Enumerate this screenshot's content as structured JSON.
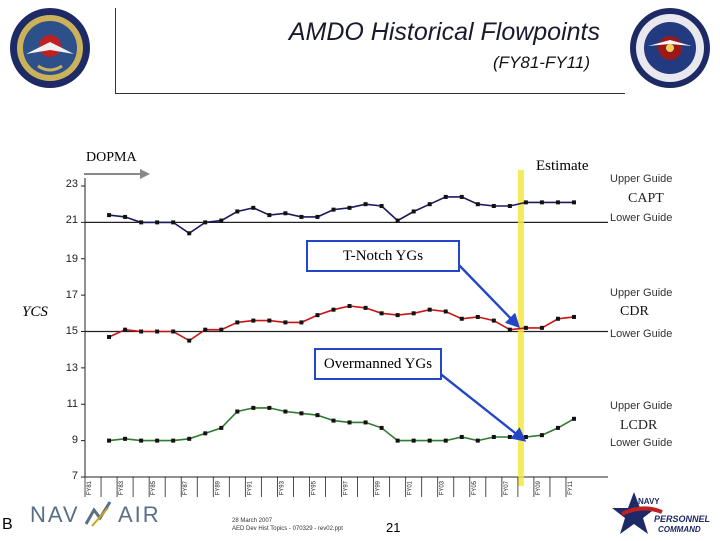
{
  "header": {
    "title": "AMDO Historical Flowpoints",
    "subtitle": "(FY81-FY11)",
    "left_seal_icon": "navy-aviation-seal-icon",
    "right_seal_icon": "aviation-maintenance-duty-seal-icon"
  },
  "annotations": {
    "dopma": "DOPMA",
    "estimate": "Estimate",
    "yaxis_label": "YCS",
    "tnotch": "T-Notch YGs",
    "overmanned": "Overmanned YGs"
  },
  "bands": [
    {
      "upper": "Upper Guide",
      "rank": "CAPT",
      "lower": "Lower Guide"
    },
    {
      "upper": "Upper Guide",
      "rank": "CDR",
      "lower": "Lower Guide"
    },
    {
      "upper": "Upper Guide",
      "rank": "LCDR",
      "lower": "Lower Guide"
    }
  ],
  "footer": {
    "letter": "B",
    "navair_logo": "NAVAIR",
    "date": "28 March 2007",
    "file": "AED Dev Hist Topics - 070329 - rev02.ppt",
    "page": "21",
    "command_logo": "NAVY PERSONNEL COMMAND"
  },
  "colors": {
    "capt": "#1a1a60",
    "cdr": "#c81414",
    "lcdr": "#2f7a2f",
    "estimate_line": "#f5e642",
    "arrow": "#2346c8",
    "guide_line": "#222222"
  },
  "chart_data": {
    "type": "line",
    "title": "AMDO Historical Flowpoints",
    "ylabel": "YCS",
    "ylim": [
      7,
      23
    ],
    "yticks": [
      7,
      9,
      11,
      13,
      15,
      17,
      19,
      21,
      23
    ],
    "guide_lines": [
      21,
      15
    ],
    "categories": [
      "FY81",
      "FY82",
      "FY83",
      "FY84",
      "FY85",
      "FY86",
      "FY87",
      "FY88",
      "FY89",
      "FY90",
      "FY91",
      "FY92",
      "FY93",
      "FY94",
      "FY95",
      "FY96",
      "FY97",
      "FY98",
      "FY99",
      "FY00",
      "FY01",
      "FY02",
      "FY03",
      "FY04",
      "FY05",
      "FY06",
      "FY07",
      "FY08",
      "FY09",
      "FY10",
      "FY11"
    ],
    "x_tick_labels": [
      "FY81",
      "FY83",
      "FY85",
      "FY87",
      "FY89",
      "FY91",
      "FY93",
      "FY95",
      "FY97",
      "FY99",
      "FY01",
      "FY03",
      "FY05",
      "FY07",
      "FY09",
      "FY11"
    ],
    "estimate_at": "FY07",
    "series": [
      {
        "name": "CAPT",
        "values": [
          null,
          21.4,
          21.3,
          21.0,
          21.0,
          21.0,
          20.4,
          21.0,
          21.1,
          21.6,
          21.8,
          21.4,
          21.5,
          21.3,
          21.3,
          21.7,
          21.8,
          22.0,
          21.9,
          21.1,
          21.6,
          22.0,
          22.4,
          22.4,
          22.0,
          21.9,
          21.9,
          22.1,
          22.1,
          22.1,
          22.1
        ]
      },
      {
        "name": "CDR",
        "values": [
          null,
          14.7,
          15.1,
          15.0,
          15.0,
          15.0,
          14.5,
          15.1,
          15.1,
          15.5,
          15.6,
          15.6,
          15.5,
          15.5,
          15.9,
          16.2,
          16.4,
          16.3,
          16.0,
          15.9,
          16.0,
          16.2,
          16.1,
          15.7,
          15.8,
          15.6,
          15.1,
          15.2,
          15.2,
          15.7,
          15.8
        ]
      },
      {
        "name": "LCDR",
        "values": [
          null,
          9.0,
          9.1,
          9.0,
          9.0,
          9.0,
          9.1,
          9.4,
          9.7,
          10.6,
          10.8,
          10.8,
          10.6,
          10.5,
          10.4,
          10.1,
          10.0,
          10.0,
          9.7,
          9.0,
          9.0,
          9.0,
          9.0,
          9.2,
          9.0,
          9.2,
          9.2,
          9.2,
          9.3,
          9.7,
          10.2
        ]
      }
    ]
  }
}
